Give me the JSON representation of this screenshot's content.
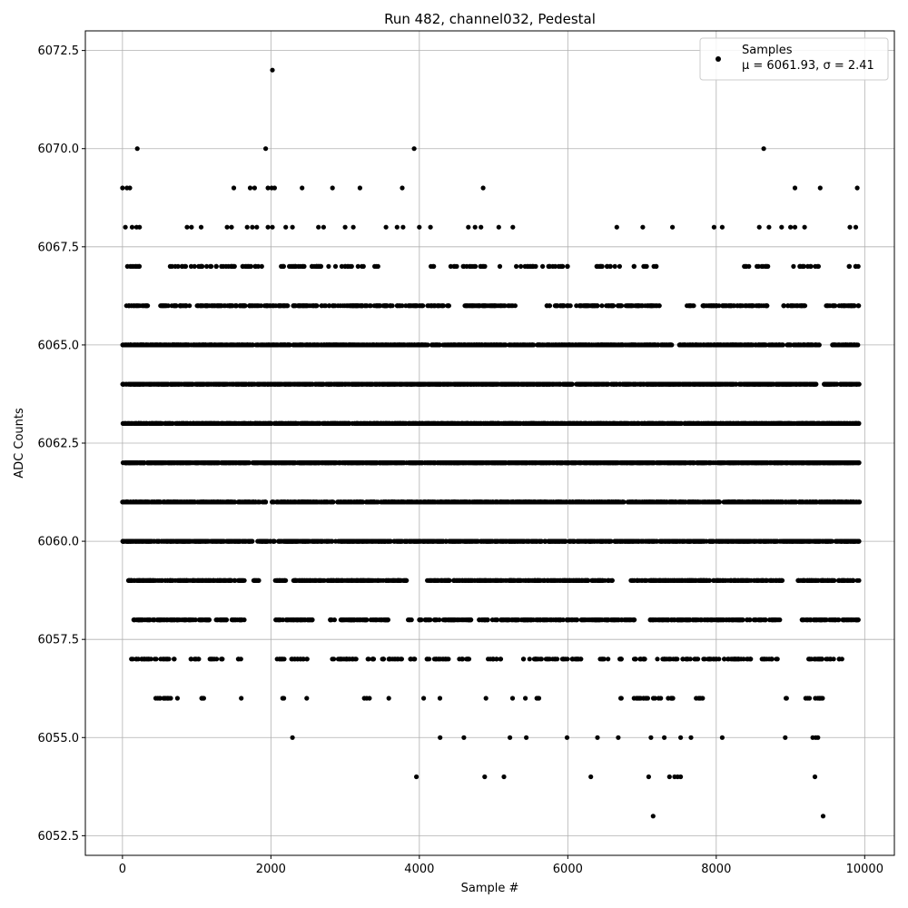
{
  "chart_data": {
    "type": "scatter",
    "title": "Run 482, channel032, Pedestal",
    "xlabel": "Sample #",
    "ylabel": "ADC Counts",
    "xlim": [
      -500,
      10400
    ],
    "ylim": [
      6052.0,
      6073.0
    ],
    "x_ticks": [
      0,
      2000,
      4000,
      6000,
      8000,
      10000
    ],
    "x_tick_labels": [
      "0",
      "2000",
      "4000",
      "6000",
      "8000",
      "10000"
    ],
    "y_ticks": [
      6052.5,
      6055.0,
      6057.5,
      6060.0,
      6062.5,
      6065.0,
      6067.5,
      6070.0,
      6072.5
    ],
    "y_tick_labels": [
      "6052.5",
      "6055.0",
      "6057.5",
      "6060.0",
      "6062.5",
      "6065.0",
      "6067.5",
      "6070.0",
      "6072.5"
    ],
    "grid": true,
    "legend_position": "top-right",
    "marker_color": "#000000",
    "series": [
      {
        "name": "Samples",
        "stats_label": "μ = 6061.93, σ = 2.41",
        "points": [
          [
            2020,
            6072
          ],
          [
            200,
            6070
          ],
          [
            1930,
            6070
          ],
          [
            3930,
            6070
          ],
          [
            8640,
            6070
          ],
          [
            0,
            6069
          ],
          [
            60,
            6069
          ],
          [
            100,
            6069
          ],
          [
            1500,
            6069
          ],
          [
            1720,
            6069
          ],
          [
            1780,
            6069
          ],
          [
            1960,
            6069
          ],
          [
            2010,
            6069
          ],
          [
            2050,
            6069
          ],
          [
            2420,
            6069
          ],
          [
            2830,
            6069
          ],
          [
            3200,
            6069
          ],
          [
            3770,
            6069
          ],
          [
            4860,
            6069
          ],
          [
            9060,
            6069
          ],
          [
            9400,
            6069
          ],
          [
            9900,
            6069
          ],
          [
            40,
            6068
          ],
          [
            130,
            6068
          ],
          [
            190,
            6068
          ],
          [
            230,
            6068
          ],
          [
            870,
            6068
          ],
          [
            930,
            6068
          ],
          [
            1060,
            6068
          ],
          [
            1410,
            6068
          ],
          [
            1470,
            6068
          ],
          [
            1680,
            6068
          ],
          [
            1750,
            6068
          ],
          [
            1810,
            6068
          ],
          [
            1960,
            6068
          ],
          [
            2020,
            6068
          ],
          [
            2200,
            6068
          ],
          [
            2290,
            6068
          ],
          [
            2640,
            6068
          ],
          [
            2710,
            6068
          ],
          [
            3000,
            6068
          ],
          [
            3110,
            6068
          ],
          [
            3550,
            6068
          ],
          [
            3700,
            6068
          ],
          [
            3780,
            6068
          ],
          [
            4000,
            6068
          ],
          [
            4150,
            6068
          ],
          [
            4660,
            6068
          ],
          [
            4750,
            6068
          ],
          [
            4830,
            6068
          ],
          [
            5070,
            6068
          ],
          [
            5260,
            6068
          ],
          [
            6660,
            6068
          ],
          [
            7010,
            6068
          ],
          [
            7410,
            6068
          ],
          [
            7970,
            6068
          ],
          [
            8080,
            6068
          ],
          [
            8580,
            6068
          ],
          [
            8710,
            6068
          ],
          [
            8880,
            6068
          ],
          [
            9000,
            6068
          ],
          [
            9060,
            6068
          ],
          [
            9190,
            6068
          ],
          [
            9800,
            6068
          ],
          [
            9880,
            6068
          ]
        ],
        "dense_bands": [
          {
            "value": 6067,
            "ranges": [
              [
                0,
                260
              ],
              [
                620,
                1900
              ],
              [
                2050,
                3250
              ],
              [
                3350,
                3450
              ],
              [
                4100,
                4200
              ],
              [
                4400,
                4900
              ],
              [
                5070,
                5100
              ],
              [
                5300,
                6000
              ],
              [
                6300,
                6700
              ],
              [
                6850,
                6900
              ],
              [
                7010,
                7200
              ],
              [
                8350,
                8700
              ],
              [
                9000,
                9400
              ],
              [
                9780,
                9920
              ]
            ],
            "count": 190
          },
          {
            "value": 6066,
            "ranges": [
              [
                40,
                350
              ],
              [
                500,
                4400
              ],
              [
                4600,
                5300
              ],
              [
                5700,
                7250
              ],
              [
                7600,
                7700
              ],
              [
                7800,
                8700
              ],
              [
                8900,
                9200
              ],
              [
                9480,
                9920
              ]
            ],
            "count": 620
          },
          {
            "value": 6065,
            "ranges": [
              [
                0,
                7400
              ],
              [
                7500,
                8900
              ],
              [
                8950,
                9400
              ],
              [
                9550,
                9920
              ]
            ],
            "count": 1200
          },
          {
            "value": 6064,
            "ranges": [
              [
                0,
                9350
              ],
              [
                9450,
                9930
              ]
            ],
            "count": 1300
          },
          {
            "value": 6063,
            "ranges": [
              [
                0,
                9930
              ]
            ],
            "count": 1450
          },
          {
            "value": 6062,
            "ranges": [
              [
                0,
                9930
              ]
            ],
            "count": 1500
          },
          {
            "value": 6061,
            "ranges": [
              [
                0,
                1950
              ],
              [
                2000,
                9930
              ]
            ],
            "count": 1400
          },
          {
            "value": 6060,
            "ranges": [
              [
                0,
                1750
              ],
              [
                1800,
                2050
              ],
              [
                2100,
                9930
              ]
            ],
            "count": 1300
          },
          {
            "value": 6059,
            "ranges": [
              [
                80,
                1650
              ],
              [
                1750,
                1850
              ],
              [
                2050,
                2200
              ],
              [
                2300,
                3850
              ],
              [
                4100,
                6600
              ],
              [
                6850,
                8900
              ],
              [
                9100,
                9930
              ]
            ],
            "count": 1000
          },
          {
            "value": 6058,
            "ranges": [
              [
                150,
                1650
              ],
              [
                2050,
                2600
              ],
              [
                2800,
                3600
              ],
              [
                3850,
                3900
              ],
              [
                4000,
                4700
              ],
              [
                4800,
                6900
              ],
              [
                7100,
                8900
              ],
              [
                9150,
                9930
              ]
            ],
            "count": 680
          },
          {
            "value": 6057,
            "ranges": [
              [
                120,
                700
              ],
              [
                900,
                1050
              ],
              [
                1150,
                1350
              ],
              [
                1540,
                1600
              ],
              [
                2080,
                2500
              ],
              [
                2820,
                3400
              ],
              [
                3480,
                3950
              ],
              [
                4050,
                4400
              ],
              [
                4530,
                4730
              ],
              [
                4900,
                5100
              ],
              [
                5400,
                6200
              ],
              [
                6420,
                6550
              ],
              [
                6700,
                7100
              ],
              [
                7200,
                8500
              ],
              [
                8600,
                8850
              ],
              [
                9200,
                9700
              ]
            ],
            "count": 300
          },
          {
            "value": 6056,
            "ranges": [
              [
                430,
                760
              ],
              [
                1000,
                1100
              ],
              [
                1600,
                1620
              ],
              [
                2150,
                2200
              ],
              [
                2480,
                2500
              ],
              [
                3240,
                3330
              ],
              [
                3580,
                3600
              ],
              [
                4050,
                4070
              ],
              [
                4270,
                4280
              ],
              [
                4880,
                4900
              ],
              [
                5250,
                5260
              ],
              [
                5420,
                5430
              ],
              [
                5550,
                5620
              ],
              [
                6680,
                6730
              ],
              [
                6870,
                7300
              ],
              [
                7350,
                7500
              ],
              [
                7720,
                7850
              ],
              [
                8900,
                8950
              ],
              [
                9200,
                9450
              ]
            ],
            "count": 70
          }
        ],
        "sparse_points": [
          [
            2290,
            6055
          ],
          [
            4280,
            6055
          ],
          [
            4600,
            6055
          ],
          [
            5220,
            6055
          ],
          [
            5440,
            6055
          ],
          [
            5990,
            6055
          ],
          [
            6400,
            6055
          ],
          [
            6680,
            6055
          ],
          [
            7120,
            6055
          ],
          [
            7300,
            6055
          ],
          [
            7520,
            6055
          ],
          [
            7660,
            6055
          ],
          [
            8080,
            6055
          ],
          [
            8930,
            6055
          ],
          [
            9300,
            6055
          ],
          [
            9340,
            6055
          ],
          [
            9370,
            6055
          ],
          [
            3960,
            6054
          ],
          [
            4880,
            6054
          ],
          [
            5140,
            6054
          ],
          [
            6310,
            6054
          ],
          [
            7090,
            6054
          ],
          [
            7370,
            6054
          ],
          [
            7440,
            6054
          ],
          [
            7480,
            6054
          ],
          [
            7520,
            6054
          ],
          [
            9330,
            6054
          ],
          [
            7150,
            6053
          ],
          [
            9440,
            6053
          ]
        ]
      }
    ]
  }
}
